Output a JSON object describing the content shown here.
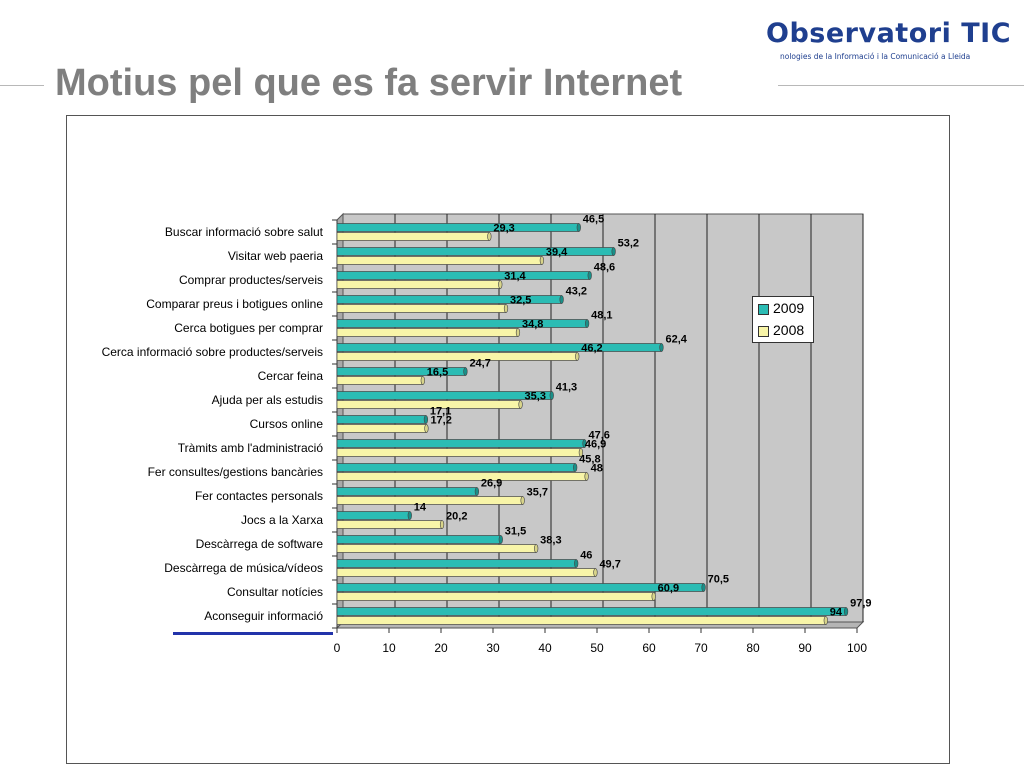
{
  "header": {
    "logo_title": "Observatori TIC",
    "logo_subtitle": "nologies de la Informació i la Comunicació a Lleida",
    "title": "Motius pel que es fa servir Internet"
  },
  "colors": {
    "series_2009": "#2bbcb4",
    "series_2008": "#f8f5a8",
    "plot_background": "#c8c8c8",
    "title_color": "#7f7f7f",
    "logo_color": "#1f3f8f"
  },
  "chart_data": {
    "type": "bar",
    "orientation": "horizontal",
    "title": "",
    "xlabel": "",
    "ylabel": "",
    "xlim": [
      0,
      100
    ],
    "ticks": [
      0,
      10,
      20,
      30,
      40,
      50,
      60,
      70,
      80,
      90,
      100
    ],
    "grid": true,
    "legend_position": "right",
    "categories": [
      "Buscar informació sobre salut",
      "Visitar web paeria",
      "Comprar productes/serveis",
      "Comparar preus i botigues online",
      "Cerca botigues per comprar",
      "Cerca informació sobre productes/serveis",
      "Cercar feina",
      "Ajuda per als estudis",
      "Cursos online",
      "Tràmits amb l'administració",
      "Fer consultes/gestions bancàries",
      "Fer contactes personals",
      "Jocs a la Xarxa",
      "Descàrrega de software",
      "Descàrrega de música/vídeos",
      "Consultar notícies",
      "Aconseguir informació"
    ],
    "series": [
      {
        "name": "2009",
        "values": [
          46.5,
          53.2,
          48.6,
          43.2,
          48.1,
          62.4,
          24.7,
          41.3,
          17.1,
          47.6,
          45.8,
          26.9,
          14,
          31.5,
          46,
          70.5,
          97.9
        ],
        "labels": [
          "46,5",
          "53,2",
          "48,6",
          "43,2",
          "48,1",
          "62,4",
          "24,7",
          "41,3",
          "17,1",
          "47,6",
          "45,8",
          "26,9",
          "14",
          "31,5",
          "46",
          "70,5",
          "97,9"
        ]
      },
      {
        "name": "2008",
        "values": [
          29.3,
          39.4,
          31.4,
          32.5,
          34.8,
          46.2,
          16.5,
          35.3,
          17.2,
          46.9,
          48,
          35.7,
          20.2,
          38.3,
          49.7,
          60.9,
          94
        ],
        "labels": [
          "29,3",
          "39,4",
          "31,4",
          "32,5",
          "34,8",
          "46,2",
          "16,5",
          "35,3",
          "17,2",
          "46,9",
          "48",
          "35,7",
          "20,2",
          "38,3",
          "49,7",
          "60,9",
          "94"
        ]
      }
    ]
  }
}
